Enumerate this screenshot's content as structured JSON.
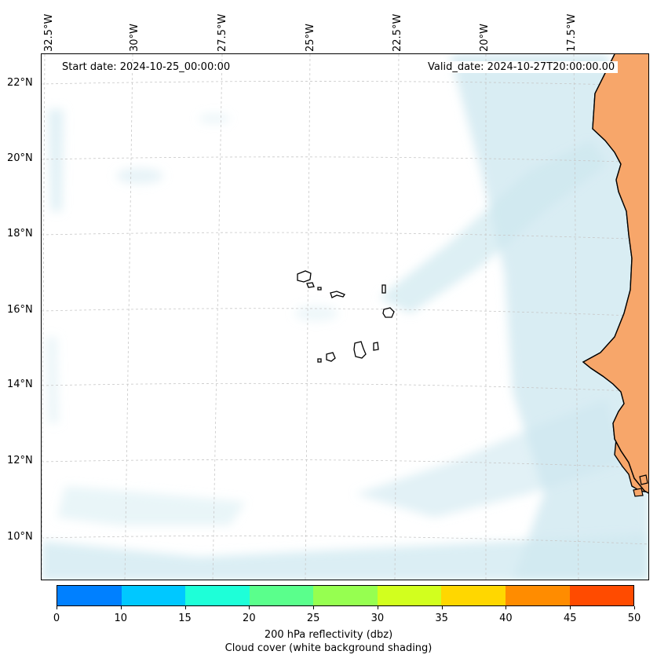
{
  "map": {
    "start_date": "Start date: 2024-10-25_00:00:00",
    "valid_date": "Valid_date: 2024-10-27T20:00:00.00",
    "longitude_labels": [
      "32.5°W",
      "30°W",
      "27.5°W",
      "25°W",
      "22.5°W",
      "20°W",
      "17.5°W"
    ],
    "latitude_labels": [
      "22°N",
      "20°N",
      "18°N",
      "16°N",
      "14°N",
      "12°N",
      "10°N"
    ],
    "region": "Cabo Verde islands and West African coast",
    "land_fill_color": "#f7a66a",
    "cloud_color": "#cfe8f0",
    "coastline_color": "#000000"
  },
  "colorbar": {
    "ticks": [
      "0",
      "10",
      "15",
      "20",
      "25",
      "30",
      "35",
      "40",
      "45",
      "50"
    ],
    "colors": [
      "#0080ff",
      "#00c8ff",
      "#1effd8",
      "#5aff8c",
      "#96ff50",
      "#d2ff1e",
      "#ffd700",
      "#ff8c00",
      "#ff4b00"
    ],
    "label_line1": "200 hPa reflectivity (dbz)",
    "label_line2": "Cloud cover (white background shading)"
  }
}
